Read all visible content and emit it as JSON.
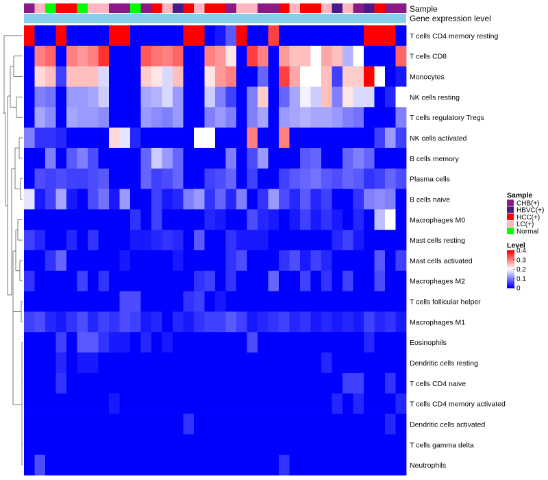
{
  "chart_data": {
    "type": "heatmap",
    "title": "",
    "annotation_rows": [
      {
        "label": "Sample"
      },
      {
        "label": "Gene expression level"
      }
    ],
    "sample_groups": [
      {
        "name": "CHB(+)",
        "color": "#8B1A89"
      },
      {
        "name": "HBVC(+)",
        "color": "#4B1A8A"
      },
      {
        "name": "HCC(+)",
        "color": "#FF0000"
      },
      {
        "name": "LC(+)",
        "color": "#FFB6C1"
      },
      {
        "name": "Normal",
        "color": "#00FF00"
      }
    ],
    "sample_annotation": [
      "CHB(+)",
      "LC(+)",
      "Normal",
      "HCC(+)",
      "HCC(+)",
      "Normal",
      "LC(+)",
      "LC(+)",
      "CHB(+)",
      "CHB(+)",
      "Normal",
      "CHB(+)",
      "HCC(+)",
      "LC(+)",
      "HBVC(+)",
      "HCC(+)",
      "LC(+)",
      "HCC(+)",
      "HCC(+)",
      "CHB(+)",
      "LC(+)",
      "LC(+)",
      "CHB(+)",
      "CHB(+)",
      "HCC(+)",
      "LC(+)",
      "HCC(+)",
      "HCC(+)",
      "LC(+)",
      "HBVC(+)",
      "LC(+)",
      "CHB(+)",
      "HBVC(+)",
      "HCC(+)",
      "CHB(+)",
      "CHB(+)"
    ],
    "gene_expression_color": "#87CEEB",
    "rows": [
      "T cells CD4 memory resting",
      "T cells CD8",
      "Monocytes",
      "NK cells resting",
      "T cells regulatory  Tregs",
      "NK cells activated",
      "B cells memory",
      "Plasma cells",
      "B cells naive",
      "Macrophages M0",
      "Mast cells resting",
      "Mast cells activated",
      "Macrophages M2",
      "T cells follicular helper",
      "Macrophages M1",
      "Eosinophils",
      "Dendritic cells resting",
      "T cells CD4 naive",
      "T cells CD4 memory activated",
      "Dendritic cells activated",
      "T cells gamma delta",
      "Neutrophils"
    ],
    "values": [
      [
        0.4,
        0,
        0,
        0.4,
        0,
        0,
        0,
        0,
        0.4,
        0.4,
        0,
        0,
        0,
        0,
        0,
        0.4,
        0.4,
        0,
        0.02,
        0.07,
        0.4,
        0,
        0,
        0.35,
        0,
        0,
        0,
        0,
        0,
        0,
        0,
        0,
        0.4,
        0.4,
        0.4,
        0
      ],
      [
        0,
        0.3,
        0.32,
        0,
        0.3,
        0.28,
        0.3,
        0.36,
        0,
        0,
        0,
        0.33,
        0.31,
        0.3,
        0.32,
        0,
        0,
        0.3,
        0.28,
        0.22,
        0,
        0.35,
        0.3,
        0,
        0.28,
        0.25,
        0.25,
        0.2,
        0.27,
        0.25,
        0.14,
        0.2,
        0,
        0,
        0,
        0.32
      ],
      [
        0,
        0.23,
        0.25,
        0.05,
        0.25,
        0.25,
        0.25,
        0.17,
        0,
        0,
        0,
        0.24,
        0.22,
        0.17,
        0.25,
        0,
        0,
        0.22,
        0.28,
        0.3,
        0,
        0,
        0.08,
        0,
        0.35,
        0.27,
        0.2,
        0.2,
        0.25,
        0.05,
        0.24,
        0.24,
        0.4,
        0.2,
        0,
        0.02
      ],
      [
        0,
        0.1,
        0.09,
        0,
        0.12,
        0.12,
        0.13,
        0.16,
        0,
        0,
        0,
        0.13,
        0.14,
        0.17,
        0.12,
        0,
        0,
        0.16,
        0.1,
        0.05,
        0,
        0.1,
        0.24,
        0,
        0.08,
        0.13,
        0.19,
        0.16,
        0.25,
        0.1,
        0.22,
        0.17,
        0.17,
        0,
        0.03,
        0.2
      ],
      [
        0,
        0.13,
        0.11,
        0,
        0.13,
        0.12,
        0.12,
        0.11,
        0,
        0,
        0,
        0.12,
        0.11,
        0.1,
        0.12,
        0,
        0,
        0.1,
        0.12,
        0.1,
        0,
        0.1,
        0.13,
        0,
        0.12,
        0.13,
        0.14,
        0.13,
        0.13,
        0.12,
        0.1,
        0.09,
        0,
        0,
        0,
        0.1
      ],
      [
        0.1,
        0.04,
        0.04,
        0.03,
        0,
        0,
        0,
        0,
        0.23,
        0.18,
        0.03,
        0,
        0,
        0,
        0,
        0,
        0.2,
        0.2,
        0,
        0,
        0,
        0.3,
        0,
        0,
        0.3,
        0,
        0,
        0,
        0,
        0,
        0,
        0,
        0,
        0.05,
        0.12,
        0.05
      ],
      [
        0,
        0,
        0.1,
        0,
        0.07,
        0.1,
        0.06,
        0,
        0,
        0,
        0,
        0.08,
        0.16,
        0.12,
        0.08,
        0,
        0,
        0,
        0,
        0.1,
        0,
        0.06,
        0.12,
        0,
        0,
        0,
        0.07,
        0.08,
        0,
        0,
        0.08,
        0.1,
        0.08,
        0,
        0,
        0
      ],
      [
        0,
        0.06,
        0.05,
        0.06,
        0.05,
        0.05,
        0.06,
        0.07,
        0,
        0,
        0,
        0.08,
        0.05,
        0.06,
        0.08,
        0,
        0,
        0.05,
        0.06,
        0.08,
        0,
        0.05,
        0,
        0,
        0.05,
        0.07,
        0.08,
        0.09,
        0.07,
        0.06,
        0.08,
        0.07,
        0.04,
        0.05,
        0.08,
        0.06
      ],
      [
        0.18,
        0.02,
        0.05,
        0.13,
        0.02,
        0,
        0.06,
        0.09,
        0.02,
        0.12,
        0,
        0,
        0.05,
        0.02,
        0.03,
        0.1,
        0.12,
        0.04,
        0.08,
        0.03,
        0.1,
        0,
        0.04,
        0.12,
        0.06,
        0.03,
        0.07,
        0.03,
        0.05,
        0,
        0,
        0.04,
        0.1,
        0.11,
        0.1,
        0
      ],
      [
        0,
        0,
        0,
        0,
        0,
        0,
        0,
        0,
        0,
        0,
        0.04,
        0,
        0.05,
        0,
        0,
        0,
        0,
        0.03,
        0.02,
        0,
        0,
        0.06,
        0.03,
        0.02,
        0,
        0.02,
        0.05,
        0.02,
        0.04,
        0.02,
        0,
        0.03,
        0,
        0.15,
        0.2,
        0
      ],
      [
        0.05,
        0.03,
        0,
        0,
        0.03,
        0,
        0.04,
        0,
        0,
        0,
        0.02,
        0.02,
        0.03,
        0.04,
        0.03,
        0,
        0.07,
        0,
        0,
        0.04,
        0.02,
        0.02,
        0.02,
        0,
        0,
        0,
        0,
        0,
        0,
        0.03,
        0.05,
        0.02,
        0,
        0,
        0,
        0
      ],
      [
        0,
        0,
        0.04,
        0.08,
        0,
        0,
        0,
        0,
        0,
        0.02,
        0,
        0,
        0,
        0,
        0.02,
        0,
        0,
        0,
        0,
        0.04,
        0.06,
        0,
        0,
        0,
        0.04,
        0.06,
        0.02,
        0.05,
        0.03,
        0,
        0,
        0,
        0,
        0.07,
        0,
        0.05
      ],
      [
        0.04,
        0,
        0,
        0,
        0,
        0.05,
        0,
        0.04,
        0,
        0,
        0,
        0,
        0,
        0,
        0,
        0,
        0.04,
        0.05,
        0,
        0.04,
        0,
        0,
        0,
        0.08,
        0,
        0,
        0.05,
        0,
        0.04,
        0,
        0.05,
        0,
        0,
        0.06,
        0,
        0
      ],
      [
        0,
        0,
        0,
        0,
        0,
        0,
        0,
        0,
        0,
        0.06,
        0.06,
        0,
        0,
        0,
        0,
        0.04,
        0.05,
        0,
        0.02,
        0,
        0,
        0,
        0,
        0,
        0,
        0,
        0,
        0,
        0,
        0,
        0,
        0,
        0,
        0,
        0,
        0
      ],
      [
        0.05,
        0.06,
        0.03,
        0.02,
        0.04,
        0.06,
        0.03,
        0.05,
        0.04,
        0.06,
        0.05,
        0.02,
        0.03,
        0,
        0.03,
        0.02,
        0.04,
        0.05,
        0.05,
        0.07,
        0.05,
        0.02,
        0.03,
        0.04,
        0.05,
        0.03,
        0.04,
        0.02,
        0.03,
        0.02,
        0.03,
        0.02,
        0.05,
        0.03,
        0.04,
        0.02
      ],
      [
        0,
        0,
        0,
        0.05,
        0,
        0.07,
        0.07,
        0.04,
        0.02,
        0.02,
        0,
        0.03,
        0,
        0.02,
        0,
        0,
        0,
        0,
        0,
        0,
        0,
        0.06,
        0,
        0,
        0,
        0,
        0,
        0,
        0,
        0,
        0,
        0,
        0.03,
        0,
        0,
        0
      ],
      [
        0,
        0,
        0,
        0.03,
        0,
        0.02,
        0.02,
        0,
        0,
        0,
        0,
        0,
        0,
        0,
        0,
        0,
        0,
        0,
        0,
        0,
        0,
        0,
        0,
        0,
        0,
        0,
        0,
        0,
        0.03,
        0,
        0,
        0,
        0,
        0,
        0,
        0
      ],
      [
        0,
        0,
        0,
        0.04,
        0,
        0,
        0,
        0,
        0,
        0,
        0,
        0,
        0,
        0,
        0,
        0,
        0,
        0,
        0,
        0,
        0,
        0,
        0,
        0,
        0,
        0,
        0,
        0,
        0,
        0,
        0.05,
        0.05,
        0,
        0,
        0.04,
        0
      ],
      [
        0,
        0,
        0,
        0,
        0,
        0,
        0,
        0,
        0.02,
        0,
        0,
        0,
        0,
        0,
        0,
        0,
        0,
        0,
        0,
        0,
        0,
        0,
        0,
        0,
        0,
        0,
        0,
        0,
        0,
        0.03,
        0,
        0.03,
        0,
        0,
        0,
        0.03
      ],
      [
        0,
        0,
        0,
        0,
        0,
        0,
        0,
        0,
        0,
        0,
        0,
        0,
        0,
        0,
        0,
        0.04,
        0,
        0,
        0,
        0,
        0,
        0,
        0,
        0,
        0,
        0,
        0,
        0,
        0,
        0,
        0,
        0,
        0,
        0,
        0.03,
        0
      ],
      [
        0,
        0,
        0,
        0,
        0,
        0,
        0,
        0,
        0,
        0,
        0,
        0,
        0,
        0,
        0,
        0,
        0,
        0,
        0,
        0,
        0,
        0,
        0,
        0,
        0,
        0,
        0,
        0,
        0,
        0,
        0,
        0,
        0,
        0,
        0,
        0
      ],
      [
        0,
        0.06,
        0,
        0,
        0,
        0,
        0,
        0,
        0,
        0,
        0,
        0,
        0,
        0,
        0,
        0,
        0,
        0,
        0,
        0,
        0,
        0,
        0,
        0,
        0.04,
        0,
        0,
        0,
        0,
        0,
        0,
        0,
        0,
        0,
        0,
        0
      ]
    ],
    "color_scale": {
      "min": 0,
      "max": 0.4,
      "mid": 0.2,
      "low_color": "#0000FF",
      "mid_color": "#FFFFFF",
      "high_color": "#FF0000"
    },
    "legend": {
      "sample_title": "Sample",
      "level_title": "Level",
      "level_ticks": [
        "0.4",
        "0.3",
        "0.2",
        "0.1",
        "0"
      ]
    },
    "row_dendrogram": true
  }
}
